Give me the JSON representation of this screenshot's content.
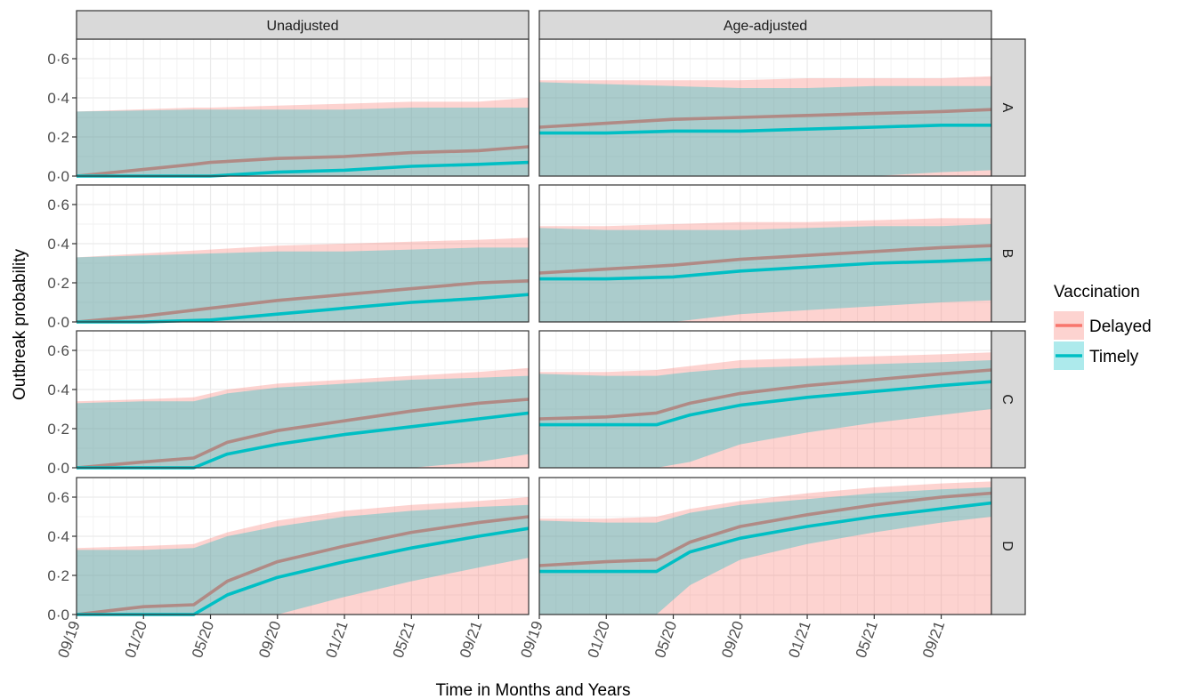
{
  "chart_data": {
    "type": "area",
    "xlabel": "Time in Months and Years",
    "ylabel": "Outbreak probability",
    "columns": [
      "Unadjusted",
      "Age-adjusted"
    ],
    "rows": [
      "A",
      "B",
      "C",
      "D"
    ],
    "x_range": [
      "2019-09",
      "2021-12"
    ],
    "x_ticks": [
      "09/19",
      "01/20",
      "05/20",
      "09/20",
      "01/21",
      "05/21",
      "09/21"
    ],
    "ylim": [
      0,
      0.7
    ],
    "y_ticks": [
      "0·0",
      "0·2",
      "0·4",
      "0·6"
    ],
    "grid": true,
    "legend": {
      "title": "Vaccination",
      "position": "right",
      "entries": [
        {
          "name": "Delayed",
          "line_color": "#F8766D",
          "fill_color": "#F8766D"
        },
        {
          "name": "Timely",
          "line_color": "#00BFC4",
          "fill_color": "#00BFC4"
        }
      ]
    },
    "panels": [
      {
        "col": "Unadjusted",
        "row": "A",
        "x": [
          "2019-09",
          "2020-04",
          "2020-05",
          "2020-09",
          "2021-01",
          "2021-05",
          "2021-09",
          "2021-12"
        ],
        "series": [
          {
            "name": "Delayed",
            "mean": [
              0.0,
              0.06,
              0.07,
              0.09,
              0.1,
              0.12,
              0.13,
              0.15
            ],
            "lower": [
              0.0,
              0.0,
              0.0,
              0.0,
              0.0,
              0.0,
              0.0,
              0.0
            ],
            "upper": [
              0.33,
              0.35,
              0.35,
              0.36,
              0.37,
              0.38,
              0.38,
              0.4
            ]
          },
          {
            "name": "Timely",
            "mean": [
              0.0,
              0.0,
              0.0,
              0.02,
              0.03,
              0.05,
              0.06,
              0.07
            ],
            "lower": [
              0.0,
              0.0,
              0.0,
              0.0,
              0.0,
              0.0,
              0.0,
              0.0
            ],
            "upper": [
              0.33,
              0.34,
              0.34,
              0.34,
              0.34,
              0.35,
              0.35,
              0.35
            ]
          }
        ]
      },
      {
        "col": "Age-adjusted",
        "row": "A",
        "x": [
          "2019-09",
          "2020-01",
          "2020-05",
          "2020-09",
          "2021-01",
          "2021-05",
          "2021-09",
          "2021-12"
        ],
        "series": [
          {
            "name": "Delayed",
            "mean": [
              0.25,
              0.27,
              0.29,
              0.3,
              0.31,
              0.32,
              0.33,
              0.34
            ],
            "lower": [
              0.0,
              0.0,
              0.0,
              0.0,
              0.0,
              0.0,
              0.0,
              0.0
            ],
            "upper": [
              0.49,
              0.49,
              0.49,
              0.49,
              0.5,
              0.5,
              0.5,
              0.51
            ]
          },
          {
            "name": "Timely",
            "mean": [
              0.22,
              0.22,
              0.23,
              0.23,
              0.24,
              0.25,
              0.26,
              0.26
            ],
            "lower": [
              0.0,
              0.0,
              0.0,
              0.0,
              0.0,
              0.0,
              0.02,
              0.03
            ],
            "upper": [
              0.48,
              0.47,
              0.46,
              0.45,
              0.45,
              0.46,
              0.46,
              0.46
            ]
          }
        ]
      },
      {
        "col": "Unadjusted",
        "row": "B",
        "x": [
          "2019-09",
          "2020-01",
          "2020-05",
          "2020-09",
          "2021-01",
          "2021-05",
          "2021-09",
          "2021-12"
        ],
        "series": [
          {
            "name": "Delayed",
            "mean": [
              0.0,
              0.03,
              0.07,
              0.11,
              0.14,
              0.17,
              0.2,
              0.21
            ],
            "lower": [
              0.0,
              0.0,
              0.0,
              0.0,
              0.0,
              0.0,
              0.0,
              0.0
            ],
            "upper": [
              0.33,
              0.35,
              0.37,
              0.39,
              0.4,
              0.41,
              0.42,
              0.43
            ]
          },
          {
            "name": "Timely",
            "mean": [
              0.0,
              0.0,
              0.01,
              0.04,
              0.07,
              0.1,
              0.12,
              0.14
            ],
            "lower": [
              0.0,
              0.0,
              0.0,
              0.0,
              0.0,
              0.0,
              0.0,
              0.0
            ],
            "upper": [
              0.33,
              0.34,
              0.35,
              0.36,
              0.36,
              0.37,
              0.38,
              0.38
            ]
          }
        ]
      },
      {
        "col": "Age-adjusted",
        "row": "B",
        "x": [
          "2019-09",
          "2020-01",
          "2020-05",
          "2020-09",
          "2021-01",
          "2021-05",
          "2021-09",
          "2021-12"
        ],
        "series": [
          {
            "name": "Delayed",
            "mean": [
              0.25,
              0.27,
              0.29,
              0.32,
              0.34,
              0.36,
              0.38,
              0.39
            ],
            "lower": [
              0.0,
              0.0,
              0.0,
              0.0,
              0.0,
              0.0,
              0.0,
              0.0
            ],
            "upper": [
              0.49,
              0.49,
              0.5,
              0.51,
              0.51,
              0.52,
              0.53,
              0.53
            ]
          },
          {
            "name": "Timely",
            "mean": [
              0.22,
              0.22,
              0.23,
              0.26,
              0.28,
              0.3,
              0.31,
              0.32
            ],
            "lower": [
              0.0,
              0.0,
              0.0,
              0.04,
              0.06,
              0.08,
              0.1,
              0.11
            ],
            "upper": [
              0.48,
              0.47,
              0.47,
              0.47,
              0.48,
              0.49,
              0.49,
              0.5
            ]
          }
        ]
      },
      {
        "col": "Unadjusted",
        "row": "C",
        "x": [
          "2019-09",
          "2020-01",
          "2020-04",
          "2020-06",
          "2020-09",
          "2021-01",
          "2021-05",
          "2021-09",
          "2021-12"
        ],
        "series": [
          {
            "name": "Delayed",
            "mean": [
              0.0,
              0.03,
              0.05,
              0.13,
              0.19,
              0.24,
              0.29,
              0.33,
              0.35
            ],
            "lower": [
              0.0,
              0.0,
              0.0,
              0.0,
              0.0,
              0.0,
              0.0,
              0.0,
              0.0
            ],
            "upper": [
              0.34,
              0.35,
              0.36,
              0.4,
              0.43,
              0.45,
              0.47,
              0.49,
              0.51
            ]
          },
          {
            "name": "Timely",
            "mean": [
              0.0,
              0.0,
              0.0,
              0.07,
              0.12,
              0.17,
              0.21,
              0.25,
              0.28
            ],
            "lower": [
              0.0,
              0.0,
              0.0,
              0.0,
              0.0,
              0.0,
              0.0,
              0.03,
              0.07
            ],
            "upper": [
              0.33,
              0.34,
              0.34,
              0.38,
              0.41,
              0.43,
              0.45,
              0.46,
              0.47
            ]
          }
        ]
      },
      {
        "col": "Age-adjusted",
        "row": "C",
        "x": [
          "2019-09",
          "2020-01",
          "2020-04",
          "2020-06",
          "2020-09",
          "2021-01",
          "2021-05",
          "2021-09",
          "2021-12"
        ],
        "series": [
          {
            "name": "Delayed",
            "mean": [
              0.25,
              0.26,
              0.28,
              0.33,
              0.38,
              0.42,
              0.45,
              0.48,
              0.5
            ],
            "lower": [
              0.0,
              0.0,
              0.0,
              0.0,
              0.0,
              0.0,
              0.0,
              0.0,
              0.0
            ],
            "upper": [
              0.49,
              0.49,
              0.5,
              0.52,
              0.55,
              0.56,
              0.57,
              0.58,
              0.59
            ]
          },
          {
            "name": "Timely",
            "mean": [
              0.22,
              0.22,
              0.22,
              0.27,
              0.32,
              0.36,
              0.39,
              0.42,
              0.44
            ],
            "lower": [
              0.0,
              0.0,
              0.0,
              0.03,
              0.12,
              0.18,
              0.23,
              0.27,
              0.3
            ],
            "upper": [
              0.48,
              0.47,
              0.47,
              0.49,
              0.51,
              0.52,
              0.53,
              0.54,
              0.55
            ]
          }
        ]
      },
      {
        "col": "Unadjusted",
        "row": "D",
        "x": [
          "2019-09",
          "2020-01",
          "2020-04",
          "2020-06",
          "2020-09",
          "2021-01",
          "2021-05",
          "2021-09",
          "2021-12"
        ],
        "series": [
          {
            "name": "Delayed",
            "mean": [
              0.0,
              0.04,
              0.05,
              0.17,
              0.27,
              0.35,
              0.42,
              0.47,
              0.5
            ],
            "lower": [
              0.0,
              0.0,
              0.0,
              0.0,
              0.0,
              0.0,
              0.0,
              0.0,
              0.0
            ],
            "upper": [
              0.34,
              0.35,
              0.36,
              0.42,
              0.48,
              0.53,
              0.56,
              0.58,
              0.6
            ]
          },
          {
            "name": "Timely",
            "mean": [
              0.0,
              0.0,
              0.0,
              0.1,
              0.19,
              0.27,
              0.34,
              0.4,
              0.44
            ],
            "lower": [
              0.0,
              0.0,
              0.0,
              0.0,
              0.0,
              0.09,
              0.17,
              0.24,
              0.29
            ],
            "upper": [
              0.33,
              0.33,
              0.34,
              0.4,
              0.45,
              0.5,
              0.53,
              0.55,
              0.56
            ]
          }
        ]
      },
      {
        "col": "Age-adjusted",
        "row": "D",
        "x": [
          "2019-09",
          "2020-01",
          "2020-04",
          "2020-06",
          "2020-09",
          "2021-01",
          "2021-05",
          "2021-09",
          "2021-12"
        ],
        "series": [
          {
            "name": "Delayed",
            "mean": [
              0.25,
              0.27,
              0.28,
              0.37,
              0.45,
              0.51,
              0.56,
              0.6,
              0.62
            ],
            "lower": [
              0.0,
              0.0,
              0.0,
              0.0,
              0.0,
              0.0,
              0.0,
              0.0,
              0.0
            ],
            "upper": [
              0.49,
              0.49,
              0.5,
              0.54,
              0.58,
              0.62,
              0.65,
              0.67,
              0.68
            ]
          },
          {
            "name": "Timely",
            "mean": [
              0.22,
              0.22,
              0.22,
              0.32,
              0.39,
              0.45,
              0.5,
              0.54,
              0.57
            ],
            "lower": [
              0.0,
              0.0,
              0.0,
              0.15,
              0.28,
              0.36,
              0.42,
              0.47,
              0.5
            ],
            "upper": [
              0.48,
              0.47,
              0.47,
              0.52,
              0.56,
              0.59,
              0.62,
              0.64,
              0.65
            ]
          }
        ]
      }
    ]
  }
}
